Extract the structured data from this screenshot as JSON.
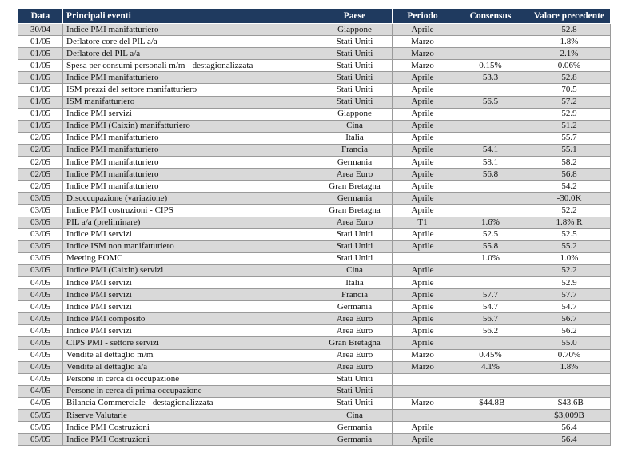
{
  "table": {
    "headers": [
      "Data",
      "Principali eventi",
      "Paese",
      "Periodo",
      "Consensus",
      "Valore precedente"
    ],
    "rows": [
      [
        "30/04",
        "Indice PMI manifatturiero",
        "Giappone",
        "Aprile",
        null,
        "52.8"
      ],
      [
        "01/05",
        "Deflatore  core del PIL a/a",
        "Stati Uniti",
        "Marzo",
        null,
        "1.8%"
      ],
      [
        "01/05",
        "Deflatore del PIL a/a",
        "Stati Uniti",
        "Marzo",
        null,
        "2.1%"
      ],
      [
        "01/05",
        "Spesa per consumi personali m/m - destagionalizzata",
        "Stati Uniti",
        "Marzo",
        "0.15%",
        "0.06%"
      ],
      [
        "01/05",
        "Indice PMI manifatturiero",
        "Stati Uniti",
        "Aprile",
        "53.3",
        "52.8"
      ],
      [
        "01/05",
        "ISM  prezzi del settore manifatturiero",
        "Stati Uniti",
        "Aprile",
        null,
        "70.5"
      ],
      [
        "01/05",
        "ISM manifatturiero",
        "Stati Uniti",
        "Aprile",
        "56.5",
        "57.2"
      ],
      [
        "01/05",
        "Indice PMI servizi",
        "Giappone",
        "Aprile",
        null,
        "52.9"
      ],
      [
        "01/05",
        "Indice PMI (Caixin) manifatturiero",
        "Cina",
        "Aprile",
        null,
        "51.2"
      ],
      [
        "02/05",
        "Indice PMI manifatturiero",
        "Italia",
        "Aprile",
        null,
        "55.7"
      ],
      [
        "02/05",
        "Indice PMI manifatturiero",
        "Francia",
        "Aprile",
        "54.1",
        "55.1"
      ],
      [
        "02/05",
        "Indice PMI manifatturiero",
        "Germania",
        "Aprile",
        "58.1",
        "58.2"
      ],
      [
        "02/05",
        "Indice PMI manifatturiero",
        "Area Euro",
        "Aprile",
        "56.8",
        "56.8"
      ],
      [
        "02/05",
        "Indice PMI manifatturiero",
        "Gran Bretagna",
        "Aprile",
        null,
        "54.2"
      ],
      [
        "03/05",
        "Disoccupazione (variazione)",
        "Germania",
        "Aprile",
        null,
        "-30.0K"
      ],
      [
        "03/05",
        "Indice PMI costruzioni - CIPS",
        "Gran Bretagna",
        "Aprile",
        null,
        "52.2"
      ],
      [
        "03/05",
        "PIL a/a (preliminare)",
        "Area Euro",
        "T1",
        "1.6%",
        "1.8% R"
      ],
      [
        "03/05",
        "Indice PMI servizi",
        "Stati Uniti",
        "Aprile",
        "52.5",
        "52.5"
      ],
      [
        "03/05",
        "Indice ISM non manifatturiero",
        "Stati Uniti",
        "Aprile",
        "55.8",
        "55.2"
      ],
      [
        "03/05",
        "Meeting FOMC",
        "Stati Uniti",
        null,
        "1.0%",
        "1.0%"
      ],
      [
        "03/05",
        "Indice PMI (Caixin) servizi",
        "Cina",
        "Aprile",
        null,
        "52.2"
      ],
      [
        "04/05",
        "Indice PMI servizi",
        "Italia",
        "Aprile",
        null,
        "52.9"
      ],
      [
        "04/05",
        "Indice PMI servizi",
        "Francia",
        "Aprile",
        "57.7",
        "57.7"
      ],
      [
        "04/05",
        "Indice PMI servizi",
        "Germania",
        "Aprile",
        "54.7",
        "54.7"
      ],
      [
        "04/05",
        "Indice PMI composito",
        "Area Euro",
        "Aprile",
        "56.7",
        "56.7"
      ],
      [
        "04/05",
        "Indice PMI servizi",
        "Area Euro",
        "Aprile",
        "56.2",
        "56.2"
      ],
      [
        "04/05",
        "CIPS PMI - settore servizi",
        "Gran Bretagna",
        "Aprile",
        null,
        "55.0"
      ],
      [
        "04/05",
        "Vendite al dettaglio m/m",
        "Area Euro",
        "Marzo",
        "0.45%",
        "0.70%"
      ],
      [
        "04/05",
        "Vendite al dettaglio a/a",
        "Area Euro",
        "Marzo",
        "4.1%",
        "1.8%"
      ],
      [
        "04/05",
        "Persone in cerca di occupazione",
        "Stati Uniti",
        null,
        null,
        null
      ],
      [
        "04/05",
        "Persone in cerca di prima occupazione",
        "Stati Uniti",
        null,
        null,
        null
      ],
      [
        "04/05",
        "Bilancia Commerciale - destagionalizzata",
        "Stati Uniti",
        "Marzo",
        "-$44.8B",
        "-$43.6B"
      ],
      [
        "05/05",
        "Riserve Valutarie",
        "Cina",
        null,
        null,
        "$3,009B"
      ],
      [
        "05/05",
        "Indice PMI  Costruzioni",
        "Germania",
        "Aprile",
        null,
        "56.4"
      ],
      [
        "05/05",
        "Indice PMI  Costruzioni",
        "Germania",
        "Aprile",
        null,
        "56.4"
      ]
    ]
  }
}
